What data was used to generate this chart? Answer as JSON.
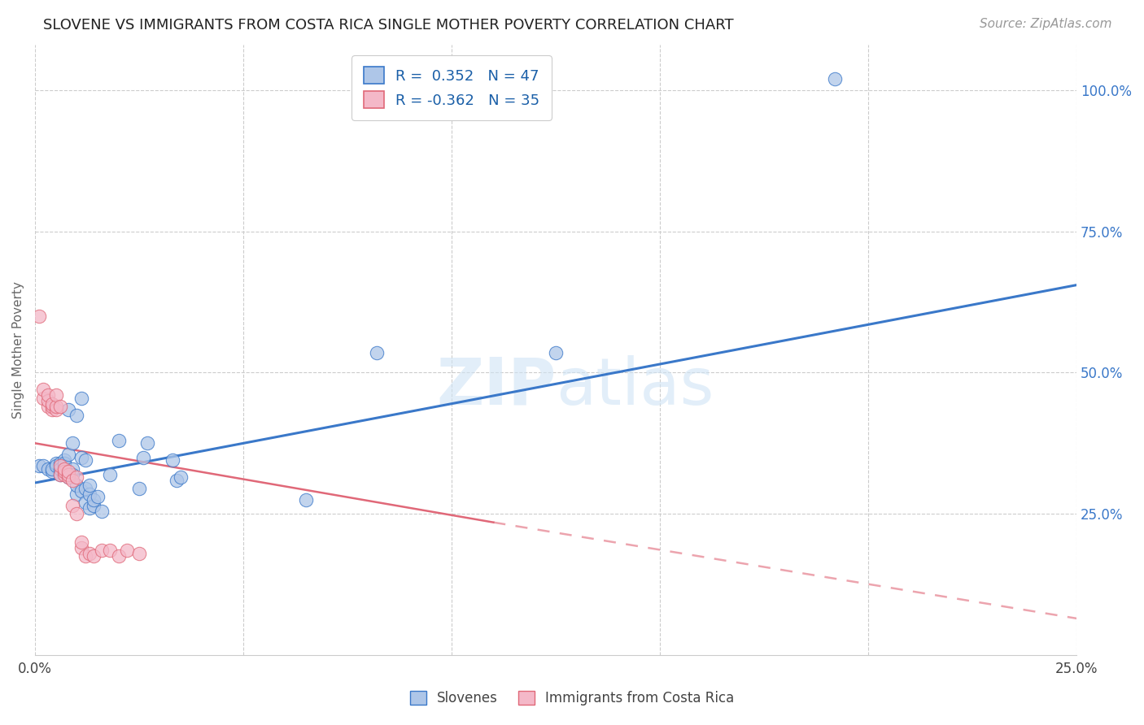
{
  "title": "SLOVENE VS IMMIGRANTS FROM COSTA RICA SINGLE MOTHER POVERTY CORRELATION CHART",
  "source": "Source: ZipAtlas.com",
  "ylabel": "Single Mother Poverty",
  "legend_label1": "Slovenes",
  "legend_label2": "Immigrants from Costa Rica",
  "R1": "0.352",
  "N1": "47",
  "R2": "-0.362",
  "N2": "35",
  "watermark": "ZIPatlas",
  "blue_color": "#aec6e8",
  "pink_color": "#f4b8c8",
  "blue_line_color": "#3a78c9",
  "pink_line_color": "#e06878",
  "blue_scatter": [
    [
      0.001,
      0.335
    ],
    [
      0.002,
      0.335
    ],
    [
      0.003,
      0.33
    ],
    [
      0.004,
      0.325
    ],
    [
      0.004,
      0.33
    ],
    [
      0.005,
      0.34
    ],
    [
      0.005,
      0.335
    ],
    [
      0.006,
      0.34
    ],
    [
      0.006,
      0.32
    ],
    [
      0.006,
      0.33
    ],
    [
      0.007,
      0.345
    ],
    [
      0.007,
      0.335
    ],
    [
      0.007,
      0.34
    ],
    [
      0.008,
      0.315
    ],
    [
      0.008,
      0.355
    ],
    [
      0.008,
      0.435
    ],
    [
      0.009,
      0.33
    ],
    [
      0.009,
      0.375
    ],
    [
      0.009,
      0.32
    ],
    [
      0.01,
      0.425
    ],
    [
      0.01,
      0.285
    ],
    [
      0.01,
      0.3
    ],
    [
      0.011,
      0.35
    ],
    [
      0.011,
      0.455
    ],
    [
      0.011,
      0.29
    ],
    [
      0.012,
      0.345
    ],
    [
      0.012,
      0.27
    ],
    [
      0.012,
      0.295
    ],
    [
      0.013,
      0.285
    ],
    [
      0.013,
      0.3
    ],
    [
      0.013,
      0.26
    ],
    [
      0.014,
      0.265
    ],
    [
      0.014,
      0.275
    ],
    [
      0.015,
      0.28
    ],
    [
      0.016,
      0.255
    ],
    [
      0.018,
      0.32
    ],
    [
      0.02,
      0.38
    ],
    [
      0.025,
      0.295
    ],
    [
      0.026,
      0.35
    ],
    [
      0.027,
      0.375
    ],
    [
      0.033,
      0.345
    ],
    [
      0.034,
      0.31
    ],
    [
      0.035,
      0.315
    ],
    [
      0.065,
      0.275
    ],
    [
      0.082,
      0.535
    ],
    [
      0.125,
      0.535
    ],
    [
      0.192,
      1.02
    ]
  ],
  "pink_scatter": [
    [
      0.001,
      0.6
    ],
    [
      0.002,
      0.455
    ],
    [
      0.002,
      0.47
    ],
    [
      0.003,
      0.44
    ],
    [
      0.003,
      0.45
    ],
    [
      0.003,
      0.46
    ],
    [
      0.004,
      0.435
    ],
    [
      0.004,
      0.44
    ],
    [
      0.004,
      0.445
    ],
    [
      0.005,
      0.435
    ],
    [
      0.005,
      0.44
    ],
    [
      0.005,
      0.46
    ],
    [
      0.006,
      0.32
    ],
    [
      0.006,
      0.335
    ],
    [
      0.006,
      0.44
    ],
    [
      0.007,
      0.32
    ],
    [
      0.007,
      0.325
    ],
    [
      0.007,
      0.33
    ],
    [
      0.008,
      0.315
    ],
    [
      0.008,
      0.32
    ],
    [
      0.008,
      0.325
    ],
    [
      0.009,
      0.265
    ],
    [
      0.009,
      0.31
    ],
    [
      0.01,
      0.315
    ],
    [
      0.01,
      0.25
    ],
    [
      0.011,
      0.19
    ],
    [
      0.011,
      0.2
    ],
    [
      0.012,
      0.175
    ],
    [
      0.013,
      0.18
    ],
    [
      0.014,
      0.175
    ],
    [
      0.016,
      0.185
    ],
    [
      0.018,
      0.185
    ],
    [
      0.02,
      0.175
    ],
    [
      0.022,
      0.185
    ],
    [
      0.025,
      0.18
    ]
  ],
  "blue_line": [
    [
      0.0,
      0.305
    ],
    [
      0.25,
      0.655
    ]
  ],
  "pink_line_solid": [
    [
      0.0,
      0.375
    ],
    [
      0.11,
      0.235
    ]
  ],
  "pink_line_dashed": [
    [
      0.11,
      0.235
    ],
    [
      0.25,
      0.065
    ]
  ],
  "xlim": [
    0.0,
    0.25
  ],
  "ylim": [
    0.0,
    1.08
  ],
  "ygrid": [
    0.25,
    0.5,
    0.75,
    1.0
  ],
  "xgrid": [
    0.0,
    0.05,
    0.1,
    0.15,
    0.2,
    0.25
  ]
}
